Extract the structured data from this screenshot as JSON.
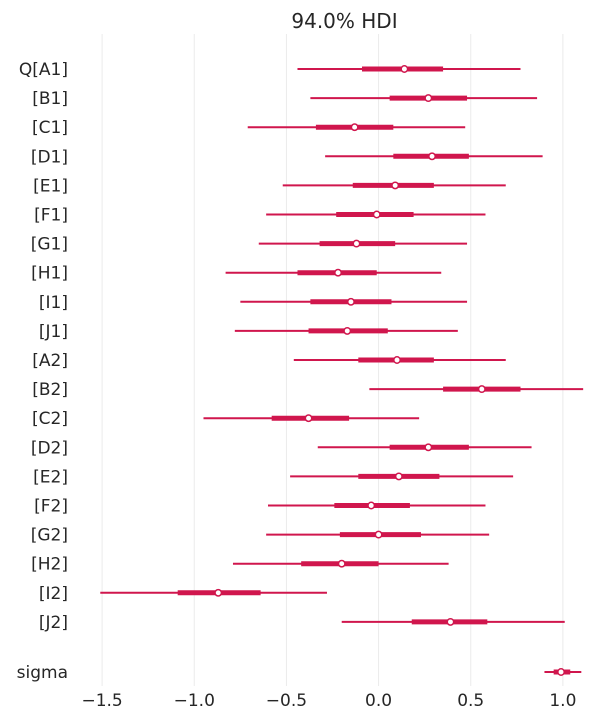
{
  "chart_data": {
    "type": "forest",
    "title": "94.0% HDI",
    "xlabel": "",
    "ylabel": "",
    "xlim": [
      -1.62,
      1.12
    ],
    "xticks": [
      -1.5,
      -1.0,
      -0.5,
      0.0,
      0.5,
      1.0
    ],
    "xtick_labels": [
      "−1.5",
      "−1.0",
      "−0.5",
      "0.0",
      "0.5",
      "1.0"
    ],
    "grid": "vertical",
    "color": "#d0164d",
    "series": [
      {
        "label": "Q[A1]",
        "hdi_low": -0.44,
        "hdi_high": 0.77,
        "iqr_low": -0.09,
        "iqr_high": 0.35,
        "point": 0.14
      },
      {
        "label": "[B1]",
        "hdi_low": -0.37,
        "hdi_high": 0.86,
        "iqr_low": 0.06,
        "iqr_high": 0.48,
        "point": 0.27
      },
      {
        "label": "[C1]",
        "hdi_low": -0.71,
        "hdi_high": 0.47,
        "iqr_low": -0.34,
        "iqr_high": 0.08,
        "point": -0.13
      },
      {
        "label": "[D1]",
        "hdi_low": -0.29,
        "hdi_high": 0.89,
        "iqr_low": 0.08,
        "iqr_high": 0.49,
        "point": 0.29
      },
      {
        "label": "[E1]",
        "hdi_low": -0.52,
        "hdi_high": 0.69,
        "iqr_low": -0.14,
        "iqr_high": 0.3,
        "point": 0.09
      },
      {
        "label": "[F1]",
        "hdi_low": -0.61,
        "hdi_high": 0.58,
        "iqr_low": -0.23,
        "iqr_high": 0.19,
        "point": -0.01
      },
      {
        "label": "[G1]",
        "hdi_low": -0.65,
        "hdi_high": 0.48,
        "iqr_low": -0.32,
        "iqr_high": 0.09,
        "point": -0.12
      },
      {
        "label": "[H1]",
        "hdi_low": -0.83,
        "hdi_high": 0.34,
        "iqr_low": -0.44,
        "iqr_high": -0.01,
        "point": -0.22
      },
      {
        "label": "[I1]",
        "hdi_low": -0.75,
        "hdi_high": 0.48,
        "iqr_low": -0.37,
        "iqr_high": 0.07,
        "point": -0.15
      },
      {
        "label": "[J1]",
        "hdi_low": -0.78,
        "hdi_high": 0.43,
        "iqr_low": -0.38,
        "iqr_high": 0.05,
        "point": -0.17
      },
      {
        "label": "[A2]",
        "hdi_low": -0.46,
        "hdi_high": 0.69,
        "iqr_low": -0.11,
        "iqr_high": 0.3,
        "point": 0.1
      },
      {
        "label": "[B2]",
        "hdi_low": -0.05,
        "hdi_high": 1.11,
        "iqr_low": 0.35,
        "iqr_high": 0.77,
        "point": 0.56
      },
      {
        "label": "[C2]",
        "hdi_low": -0.95,
        "hdi_high": 0.22,
        "iqr_low": -0.58,
        "iqr_high": -0.16,
        "point": -0.38
      },
      {
        "label": "[D2]",
        "hdi_low": -0.33,
        "hdi_high": 0.83,
        "iqr_low": 0.06,
        "iqr_high": 0.49,
        "point": 0.27
      },
      {
        "label": "[E2]",
        "hdi_low": -0.48,
        "hdi_high": 0.73,
        "iqr_low": -0.11,
        "iqr_high": 0.33,
        "point": 0.11
      },
      {
        "label": "[F2]",
        "hdi_low": -0.6,
        "hdi_high": 0.58,
        "iqr_low": -0.24,
        "iqr_high": 0.17,
        "point": -0.04
      },
      {
        "label": "[G2]",
        "hdi_low": -0.61,
        "hdi_high": 0.6,
        "iqr_low": -0.21,
        "iqr_high": 0.23,
        "point": 0.0
      },
      {
        "label": "[H2]",
        "hdi_low": -0.79,
        "hdi_high": 0.38,
        "iqr_low": -0.42,
        "iqr_high": 0.0,
        "point": -0.2
      },
      {
        "label": "[I2]",
        "hdi_low": -1.51,
        "hdi_high": -0.28,
        "iqr_low": -1.09,
        "iqr_high": -0.64,
        "point": -0.87
      },
      {
        "label": "[J2]",
        "hdi_low": -0.2,
        "hdi_high": 1.01,
        "iqr_low": 0.18,
        "iqr_high": 0.59,
        "point": 0.39
      },
      {
        "label": "sigma",
        "hdi_low": 0.9,
        "hdi_high": 1.1,
        "iqr_low": 0.95,
        "iqr_high": 1.04,
        "point": 0.99,
        "separated": true
      }
    ]
  }
}
